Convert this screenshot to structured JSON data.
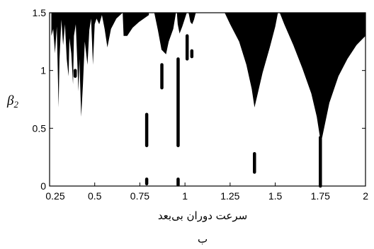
{
  "chart_data": {
    "type": "area",
    "xlabel": "سرعت دوران بی‌بعد",
    "ylabel_symbol": "β",
    "ylabel_subscript": "2",
    "caption": "ب",
    "xlim": [
      0.25,
      2.0
    ],
    "ylim": [
      0,
      1.5
    ],
    "x_ticks": [
      0.25,
      0.5,
      0.75,
      1,
      1.25,
      1.5,
      1.75,
      2
    ],
    "x_tick_labels": [
      "0.25",
      "0.5",
      "0.75",
      "1",
      "1.25",
      "1.5",
      "1.75",
      "2"
    ],
    "y_ticks": [
      0,
      0.5,
      1,
      1.5
    ],
    "y_tick_labels": [
      "0",
      "0.5",
      "1",
      "1.5"
    ],
    "grid": false,
    "fill_color": "#000000",
    "regions": [
      {
        "x_start": 1.525,
        "x_end": 2.0,
        "polygon": [
          [
            1.525,
            1.5
          ],
          [
            1.55,
            1.4
          ],
          [
            1.6,
            1.22
          ],
          [
            1.65,
            1.02
          ],
          [
            1.7,
            0.8
          ],
          [
            1.73,
            0.6
          ],
          [
            1.75,
            0.4
          ],
          [
            1.76,
            0.42
          ],
          [
            1.8,
            0.72
          ],
          [
            1.85,
            0.95
          ],
          [
            1.9,
            1.1
          ],
          [
            1.95,
            1.22
          ],
          [
            2.0,
            1.3
          ],
          [
            2.0,
            1.5
          ]
        ]
      },
      {
        "x_start": 1.22,
        "x_end": 1.515,
        "polygon": [
          [
            1.22,
            1.5
          ],
          [
            1.25,
            1.4
          ],
          [
            1.3,
            1.25
          ],
          [
            1.34,
            1.05
          ],
          [
            1.37,
            0.84
          ],
          [
            1.385,
            0.68
          ],
          [
            1.4,
            0.78
          ],
          [
            1.43,
            0.98
          ],
          [
            1.47,
            1.2
          ],
          [
            1.5,
            1.38
          ],
          [
            1.515,
            1.5
          ]
        ]
      },
      {
        "x_start": 0.655,
        "x_end": 0.8,
        "polygon": [
          [
            0.655,
            1.5
          ],
          [
            0.66,
            1.3
          ],
          [
            0.68,
            1.3
          ],
          [
            0.71,
            1.37
          ],
          [
            0.745,
            1.42
          ],
          [
            0.8,
            1.48
          ],
          [
            0.8,
            1.5
          ]
        ]
      },
      {
        "x_start": 0.83,
        "x_end": 0.95,
        "polygon": [
          [
            0.83,
            1.5
          ],
          [
            0.85,
            1.35
          ],
          [
            0.87,
            1.18
          ],
          [
            0.895,
            1.14
          ],
          [
            0.91,
            1.25
          ],
          [
            0.935,
            1.36
          ],
          [
            0.95,
            1.5
          ]
        ]
      },
      {
        "x_start": 0.955,
        "x_end": 1.01,
        "polygon": [
          [
            0.955,
            1.5
          ],
          [
            0.96,
            1.4
          ],
          [
            0.97,
            1.32
          ],
          [
            0.985,
            1.38
          ],
          [
            1.01,
            1.5
          ]
        ]
      },
      {
        "x_start": 1.02,
        "x_end": 1.06,
        "polygon": [
          [
            1.02,
            1.5
          ],
          [
            1.03,
            1.42
          ],
          [
            1.04,
            1.4
          ],
          [
            1.05,
            1.44
          ],
          [
            1.06,
            1.5
          ]
        ]
      },
      {
        "x_start": 0.26,
        "x_end": 0.655,
        "polygon": [
          [
            0.26,
            1.5
          ],
          [
            0.26,
            1.3
          ],
          [
            0.27,
            1.36
          ],
          [
            0.28,
            1.15
          ],
          [
            0.29,
            1.38
          ],
          [
            0.3,
            0.68
          ],
          [
            0.305,
            1.1
          ],
          [
            0.315,
            1.44
          ],
          [
            0.325,
            1.22
          ],
          [
            0.335,
            1.4
          ],
          [
            0.345,
            1.1
          ],
          [
            0.355,
            0.95
          ],
          [
            0.36,
            1.28
          ],
          [
            0.37,
            1.15
          ],
          [
            0.38,
            0.88
          ],
          [
            0.385,
            1.3
          ],
          [
            0.395,
            1.4
          ],
          [
            0.41,
            0.82
          ],
          [
            0.415,
            1.1
          ],
          [
            0.425,
            0.6
          ],
          [
            0.435,
            0.88
          ],
          [
            0.445,
            1.25
          ],
          [
            0.46,
            1.05
          ],
          [
            0.47,
            1.35
          ],
          [
            0.48,
            1.45
          ],
          [
            0.49,
            1.05
          ],
          [
            0.5,
            1.4
          ],
          [
            0.51,
            1.45
          ],
          [
            0.525,
            1.4
          ],
          [
            0.54,
            1.48
          ],
          [
            0.555,
            1.36
          ],
          [
            0.57,
            1.2
          ],
          [
            0.59,
            1.36
          ],
          [
            0.62,
            1.45
          ],
          [
            0.655,
            1.5
          ]
        ]
      }
    ],
    "line_segments": [
      {
        "x": 0.392,
        "y0": 0.95,
        "y1": 1.0
      },
      {
        "x": 0.788,
        "y0": 0.35,
        "y1": 0.62
      },
      {
        "x": 0.788,
        "y0": 0.02,
        "y1": 0.06
      },
      {
        "x": 0.872,
        "y0": 0.85,
        "y1": 1.05
      },
      {
        "x": 0.962,
        "y0": 0.35,
        "y1": 1.1
      },
      {
        "x": 0.962,
        "y0": 0.01,
        "y1": 0.06
      },
      {
        "x": 1.012,
        "y0": 1.1,
        "y1": 1.3
      },
      {
        "x": 1.038,
        "y0": 1.12,
        "y1": 1.17
      },
      {
        "x": 1.385,
        "y0": 0.12,
        "y1": 0.28
      },
      {
        "x": 1.75,
        "y0": 0.0,
        "y1": 0.42
      }
    ]
  }
}
